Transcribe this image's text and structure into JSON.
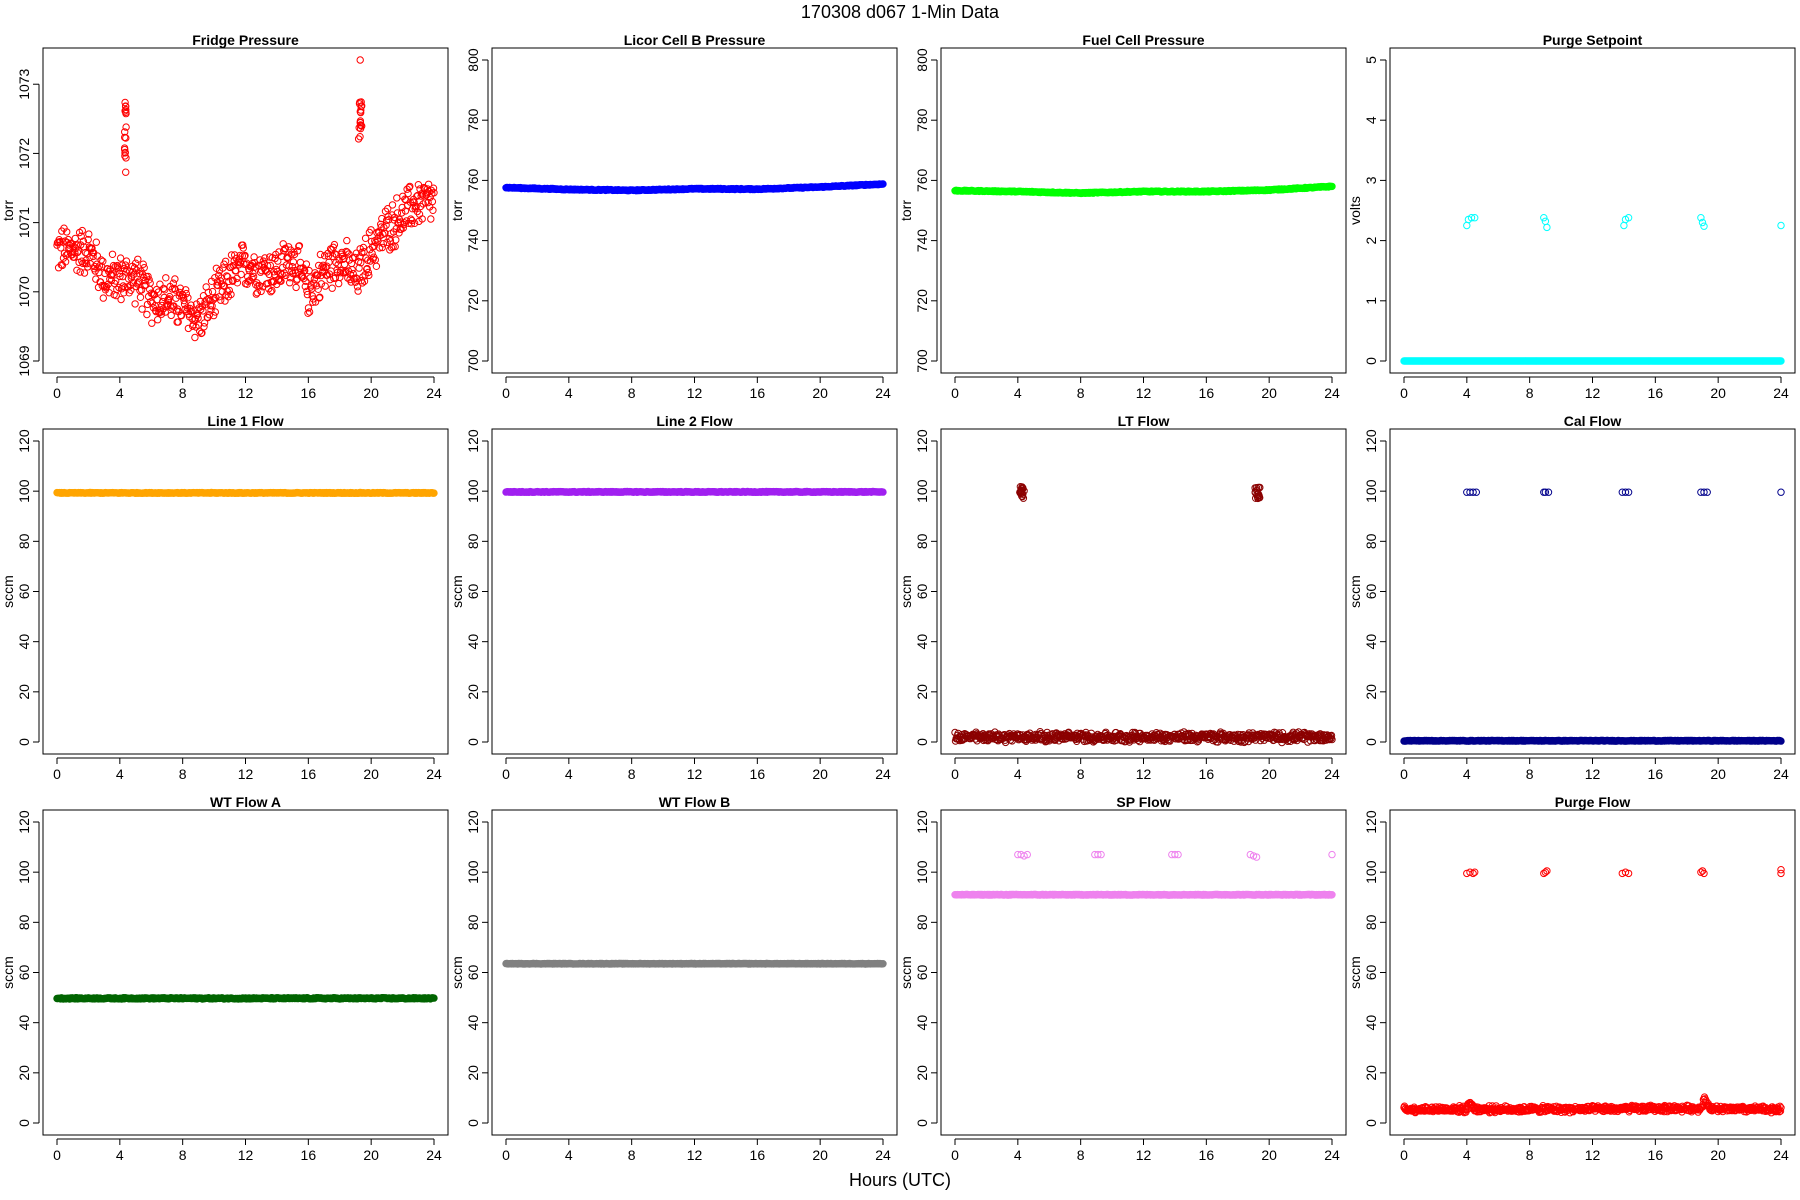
{
  "title": "170308    d067    1-Min Data",
  "xlabel": "Hours (UTC)",
  "chart_data": [
    {
      "type": "scatter",
      "title": "Fridge Pressure",
      "ylabel": "torr",
      "color": "#ff0000",
      "xlim": [
        0,
        24
      ],
      "ylim": [
        1069,
        1073.35
      ],
      "xticks": [
        0,
        4,
        8,
        12,
        16,
        20,
        24
      ],
      "yticks": [
        1069,
        1070,
        1071,
        1072,
        1073
      ],
      "ytick_labels": [
        "1069",
        "1070",
        "1071",
        "1072",
        "1073"
      ],
      "series": [
        {
          "kind": "profile",
          "x": [
            0,
            1,
            2,
            3,
            4,
            5,
            6,
            7,
            8,
            9,
            10,
            11,
            12,
            13,
            14,
            15,
            16,
            17,
            18,
            19,
            20,
            21,
            22,
            23,
            24
          ],
          "y": [
            1070.6,
            1070.6,
            1070.6,
            1070.2,
            1070.2,
            1070.2,
            1069.9,
            1069.9,
            1069.8,
            1069.6,
            1069.9,
            1070.2,
            1070.4,
            1070.3,
            1070.3,
            1070.5,
            1070.0,
            1070.3,
            1070.5,
            1070.2,
            1070.6,
            1070.9,
            1071.1,
            1071.3,
            1071.3
          ],
          "spread": 0.55,
          "hollow": true
        },
        {
          "kind": "cluster",
          "x": [
            4.3,
            4.4
          ],
          "y": [
            1071.7,
            1072.9
          ],
          "hollow": true
        },
        {
          "kind": "cluster",
          "x": [
            19.2,
            19.4
          ],
          "y": [
            1072.2,
            1072.8
          ],
          "hollow": true
        },
        {
          "kind": "points",
          "x": [
            19.3
          ],
          "y": [
            1073.35
          ],
          "hollow": true
        }
      ]
    },
    {
      "type": "scatter",
      "title": "Licor Cell B Pressure",
      "ylabel": "torr",
      "color": "#0000ff",
      "xlim": [
        0,
        24
      ],
      "ylim": [
        700,
        800
      ],
      "xticks": [
        0,
        4,
        8,
        12,
        16,
        20,
        24
      ],
      "yticks": [
        700,
        720,
        740,
        760,
        780,
        800
      ],
      "ytick_labels": [
        "700",
        "720",
        "740",
        "760",
        "780",
        "800"
      ],
      "series": [
        {
          "kind": "profile",
          "x": [
            0,
            4,
            8,
            12,
            16,
            20,
            24
          ],
          "y": [
            757.6,
            757.0,
            756.7,
            757.2,
            757.1,
            757.8,
            758.8
          ],
          "spread": 0.3,
          "hollow": false
        }
      ]
    },
    {
      "type": "scatter",
      "title": "Fuel Cell Pressure",
      "ylabel": "torr",
      "color": "#00ff00",
      "xlim": [
        0,
        24
      ],
      "ylim": [
        700,
        800
      ],
      "xticks": [
        0,
        4,
        8,
        12,
        16,
        20,
        24
      ],
      "yticks": [
        700,
        720,
        740,
        760,
        780,
        800
      ],
      "ytick_labels": [
        "700",
        "720",
        "740",
        "760",
        "780",
        "800"
      ],
      "series": [
        {
          "kind": "profile",
          "x": [
            0,
            4,
            8,
            12,
            16,
            20,
            24
          ],
          "y": [
            756.6,
            756.3,
            755.8,
            756.3,
            756.3,
            756.8,
            758.0
          ],
          "spread": 0.3,
          "hollow": false
        }
      ]
    },
    {
      "type": "scatter",
      "title": "Purge Setpoint",
      "ylabel": "volts",
      "color": "#00ffff",
      "xlim": [
        0,
        24
      ],
      "ylim": [
        0,
        5
      ],
      "xticks": [
        0,
        4,
        8,
        12,
        16,
        20,
        24
      ],
      "yticks": [
        0,
        1,
        2,
        3,
        4,
        5
      ],
      "ytick_labels": [
        "0",
        "1",
        "2",
        "3",
        "4",
        "5"
      ],
      "series": [
        {
          "kind": "profile",
          "x": [
            0,
            24
          ],
          "y": [
            0.0,
            0.0
          ],
          "spread": 0,
          "hollow": false
        },
        {
          "kind": "points",
          "x": [
            4.0,
            4.1,
            4.3,
            4.5,
            8.9,
            9.0,
            9.1,
            14.0,
            14.1,
            14.3,
            18.9,
            19.0,
            19.1,
            24.0
          ],
          "y": [
            2.25,
            2.35,
            2.38,
            2.38,
            2.38,
            2.32,
            2.22,
            2.25,
            2.35,
            2.38,
            2.38,
            2.3,
            2.24,
            2.25
          ],
          "hollow": true
        }
      ]
    },
    {
      "type": "scatter",
      "title": "Line 1 Flow",
      "ylabel": "sccm",
      "color": "#ffa500",
      "xlim": [
        0,
        24
      ],
      "ylim": [
        0,
        120
      ],
      "xticks": [
        0,
        4,
        8,
        12,
        16,
        20,
        24
      ],
      "yticks": [
        0,
        20,
        40,
        60,
        80,
        100,
        120
      ],
      "ytick_labels": [
        "0",
        "20",
        "40",
        "60",
        "80",
        "100",
        "120"
      ],
      "series": [
        {
          "kind": "profile",
          "x": [
            0,
            24
          ],
          "y": [
            99.3,
            99.3
          ],
          "spread": 0.3,
          "hollow": false
        }
      ]
    },
    {
      "type": "scatter",
      "title": "Line 2 Flow",
      "ylabel": "sccm",
      "color": "#a020f0",
      "xlim": [
        0,
        24
      ],
      "ylim": [
        0,
        120
      ],
      "xticks": [
        0,
        4,
        8,
        12,
        16,
        20,
        24
      ],
      "yticks": [
        0,
        20,
        40,
        60,
        80,
        100,
        120
      ],
      "ytick_labels": [
        "0",
        "20",
        "40",
        "60",
        "80",
        "100",
        "120"
      ],
      "series": [
        {
          "kind": "profile",
          "x": [
            0,
            24
          ],
          "y": [
            99.7,
            99.7
          ],
          "spread": 0.3,
          "hollow": false
        }
      ]
    },
    {
      "type": "scatter",
      "title": "LT Flow",
      "ylabel": "sccm",
      "color": "#8b0000",
      "xlim": [
        0,
        24
      ],
      "ylim": [
        0,
        120
      ],
      "xticks": [
        0,
        4,
        8,
        12,
        16,
        20,
        24
      ],
      "yticks": [
        0,
        20,
        40,
        60,
        80,
        100,
        120
      ],
      "ytick_labels": [
        "0",
        "20",
        "40",
        "60",
        "80",
        "100",
        "120"
      ],
      "series": [
        {
          "kind": "profile",
          "x": [
            0,
            24
          ],
          "y": [
            2,
            2
          ],
          "spread": 3,
          "hollow": true
        },
        {
          "kind": "cluster",
          "x": [
            4.1,
            4.4
          ],
          "y": [
            97,
            102
          ],
          "hollow": true
        },
        {
          "kind": "cluster",
          "x": [
            19.1,
            19.4
          ],
          "y": [
            97,
            102
          ],
          "hollow": true
        }
      ]
    },
    {
      "type": "scatter",
      "title": "Cal Flow",
      "ylabel": "sccm",
      "color": "#00008b",
      "xlim": [
        0,
        24
      ],
      "ylim": [
        0,
        120
      ],
      "xticks": [
        0,
        4,
        8,
        12,
        16,
        20,
        24
      ],
      "yticks": [
        0,
        20,
        40,
        60,
        80,
        100,
        120
      ],
      "ytick_labels": [
        "0",
        "20",
        "40",
        "60",
        "80",
        "100",
        "120"
      ],
      "series": [
        {
          "kind": "profile",
          "x": [
            0,
            24
          ],
          "y": [
            0.5,
            0.5
          ],
          "spread": 0.3,
          "hollow": false
        },
        {
          "kind": "points",
          "x": [
            4.0,
            4.2,
            4.4,
            4.6,
            8.9,
            9.0,
            9.2,
            13.9,
            14.1,
            14.3,
            18.9,
            19.1,
            19.3,
            24.0
          ],
          "y": [
            99.6,
            99.6,
            99.6,
            99.6,
            99.6,
            99.6,
            99.6,
            99.6,
            99.6,
            99.6,
            99.6,
            99.6,
            99.6,
            99.6
          ],
          "hollow": true
        }
      ]
    },
    {
      "type": "scatter",
      "title": "WT Flow A",
      "ylabel": "sccm",
      "color": "#006400",
      "xlim": [
        0,
        24
      ],
      "ylim": [
        0,
        120
      ],
      "xticks": [
        0,
        4,
        8,
        12,
        16,
        20,
        24
      ],
      "yticks": [
        0,
        20,
        40,
        60,
        80,
        100,
        120
      ],
      "ytick_labels": [
        "0",
        "20",
        "40",
        "60",
        "80",
        "100",
        "120"
      ],
      "series": [
        {
          "kind": "profile",
          "x": [
            0,
            24
          ],
          "y": [
            49.7,
            49.7
          ],
          "spread": 0.5,
          "hollow": false
        }
      ]
    },
    {
      "type": "scatter",
      "title": "WT Flow B",
      "ylabel": "sccm",
      "color": "#808080",
      "xlim": [
        0,
        24
      ],
      "ylim": [
        0,
        120
      ],
      "xticks": [
        0,
        4,
        8,
        12,
        16,
        20,
        24
      ],
      "yticks": [
        0,
        20,
        40,
        60,
        80,
        100,
        120
      ],
      "ytick_labels": [
        "0",
        "20",
        "40",
        "60",
        "80",
        "100",
        "120"
      ],
      "series": [
        {
          "kind": "profile",
          "x": [
            0,
            24
          ],
          "y": [
            63.5,
            63.5
          ],
          "spread": 0.2,
          "hollow": false
        }
      ]
    },
    {
      "type": "scatter",
      "title": "SP Flow",
      "ylabel": "sccm",
      "color": "#ee82ee",
      "xlim": [
        0,
        24
      ],
      "ylim": [
        0,
        120
      ],
      "xticks": [
        0,
        4,
        8,
        12,
        16,
        20,
        24
      ],
      "yticks": [
        0,
        20,
        40,
        60,
        80,
        100,
        120
      ],
      "ytick_labels": [
        "0",
        "20",
        "40",
        "60",
        "80",
        "100",
        "120"
      ],
      "series": [
        {
          "kind": "profile",
          "x": [
            0,
            24
          ],
          "y": [
            91,
            91
          ],
          "spread": 0.3,
          "hollow": false
        },
        {
          "kind": "points",
          "x": [
            4.0,
            4.2,
            4.4,
            4.6,
            8.9,
            9.1,
            9.3,
            13.8,
            14.0,
            14.2,
            18.8,
            19.0,
            19.2,
            24.0
          ],
          "y": [
            107,
            107,
            106.5,
            107,
            107,
            107,
            107,
            107,
            107,
            107,
            107,
            106.5,
            106,
            107
          ],
          "hollow": true
        }
      ]
    },
    {
      "type": "scatter",
      "title": "Purge Flow",
      "ylabel": "sccm",
      "color": "#ff0000",
      "xlim": [
        0,
        24
      ],
      "ylim": [
        0,
        120
      ],
      "xticks": [
        0,
        4,
        8,
        12,
        16,
        20,
        24
      ],
      "yticks": [
        0,
        20,
        40,
        60,
        80,
        100,
        120
      ],
      "ytick_labels": [
        "0",
        "20",
        "40",
        "60",
        "80",
        "100",
        "120"
      ],
      "series": [
        {
          "kind": "profile",
          "x": [
            0,
            4,
            4.2,
            4.5,
            8,
            12,
            16,
            18.9,
            19.1,
            19.5,
            20,
            24
          ],
          "y": [
            5.5,
            5.5,
            8.5,
            5.5,
            5.5,
            5.5,
            5.8,
            5.8,
            9.5,
            6.0,
            5.5,
            5.5
          ],
          "spread": 2,
          "hollow": true
        },
        {
          "kind": "points",
          "x": [
            4.0,
            4.2,
            4.4,
            4.5,
            8.9,
            9.0,
            9.1,
            13.9,
            14.1,
            14.3,
            18.9,
            19.0,
            19.1,
            24.0,
            24.0
          ],
          "y": [
            99.5,
            100,
            99.5,
            100,
            99.5,
            100,
            100.5,
            99.5,
            100,
            99.5,
            100,
            100.5,
            99.5,
            99.5,
            101
          ],
          "hollow": true
        }
      ]
    }
  ]
}
